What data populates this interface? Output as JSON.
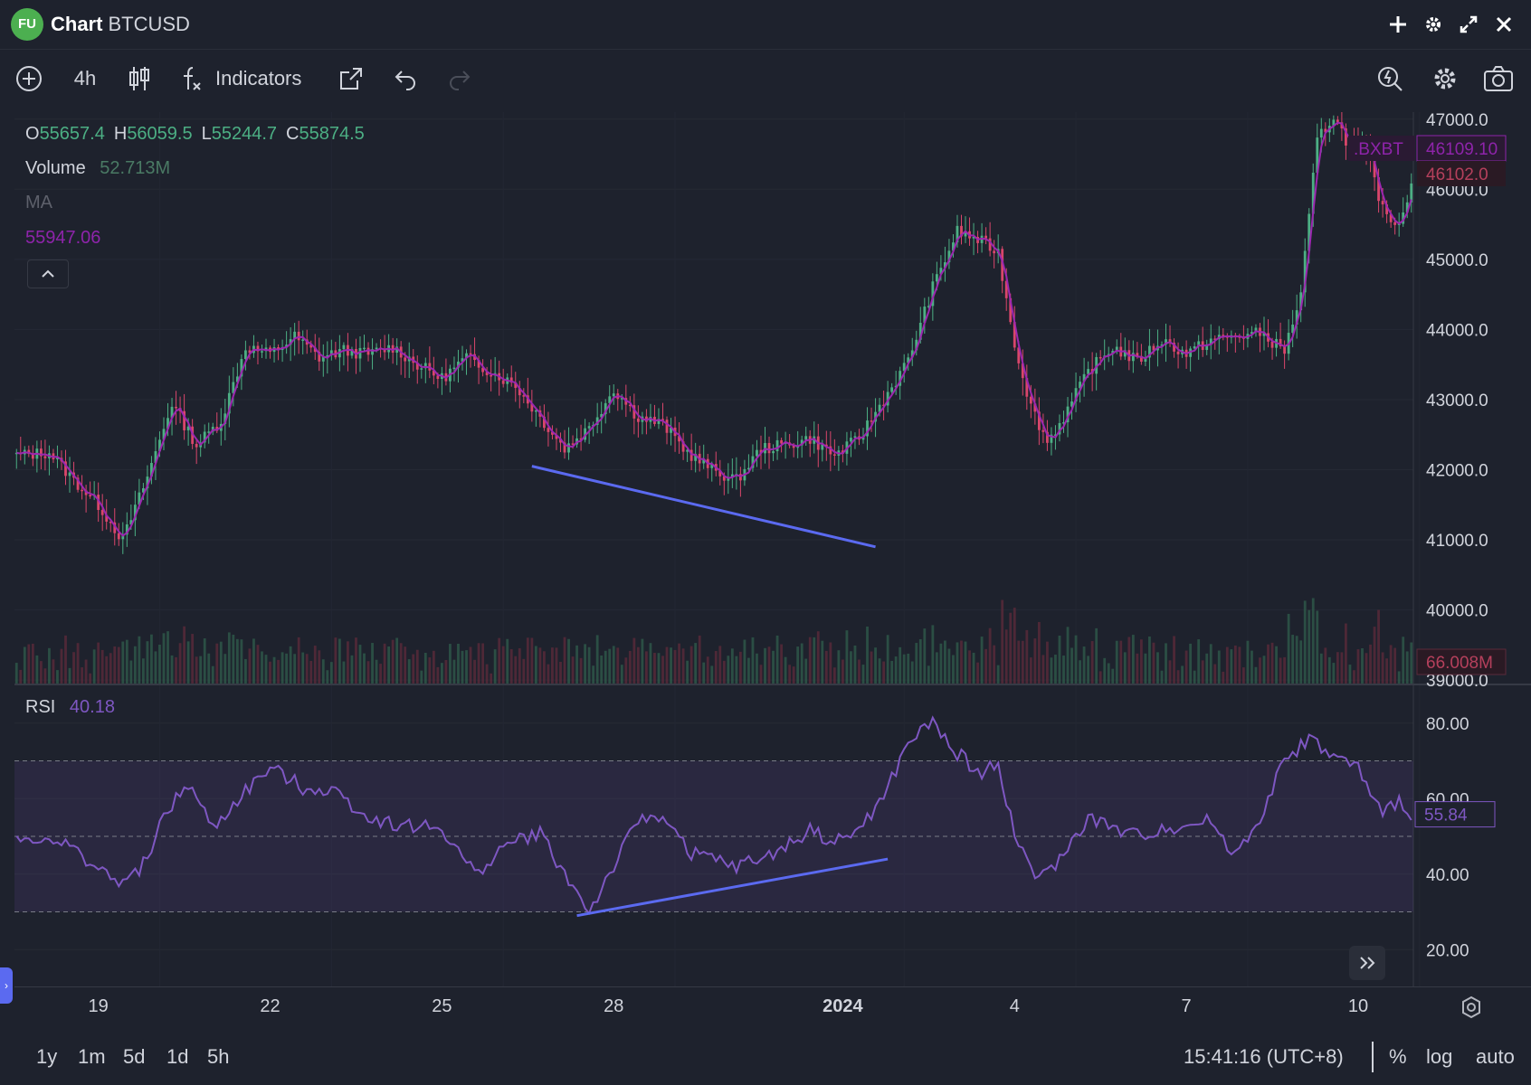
{
  "header": {
    "logo_text": "FU",
    "title_bold": "Chart",
    "title_symbol": "BTCUSD",
    "icons": [
      "plus-icon",
      "gear-icon",
      "expand-icon",
      "close-icon"
    ]
  },
  "toolbar": {
    "interval": "4h",
    "indicators_label": "Indicators"
  },
  "legend": {
    "open_label": "O",
    "open": "55657.4",
    "high_label": "H",
    "high": "56059.5",
    "low_label": "L",
    "low": "55244.7",
    "close_label": "C",
    "close": "55874.5",
    "volume_label": "Volume",
    "volume": "52.713M",
    "ma_label": "MA",
    "ma_value": "55947.06"
  },
  "rsi": {
    "label": "RSI",
    "value": "40.18"
  },
  "price_axis": {
    "ticks": [
      "47000.0",
      "45000.0",
      "44000.0",
      "43000.0",
      "42000.0",
      "41000.0",
      "40000.0",
      "39000.0"
    ],
    "partial_tick": "46000.0",
    "bxbt_label": ".BXBT",
    "bxbt_value": "46109.10",
    "last_price": "46102.0",
    "volume_tag": "66.008M"
  },
  "rsi_axis": {
    "ticks": [
      "80.00",
      "60.00",
      "40.00",
      "20.00"
    ],
    "current": "55.84"
  },
  "time_axis": {
    "labels": [
      "19",
      "22",
      "25",
      "28",
      "2024",
      "4",
      "7",
      "10"
    ]
  },
  "bottom": {
    "ranges": [
      "1y",
      "1m",
      "5d",
      "1d",
      "5h"
    ],
    "clock": "15:41:16 (UTC+8)",
    "percent": "%",
    "log": "log",
    "auto": "auto"
  },
  "colors": {
    "background": "#1e222d",
    "up": "#4caf84",
    "down": "#d9466b",
    "ma_line": "#9c27b0",
    "rsi_line": "#7e57c2",
    "trendline": "#5b6af0"
  },
  "chart_data": {
    "type": "candlestick",
    "symbol": "BTCUSD",
    "interval": "4h",
    "price_range": [
      39000,
      47000
    ],
    "anchors": [
      [
        0,
        42200
      ],
      [
        8,
        42250
      ],
      [
        14,
        41850
      ],
      [
        20,
        41500
      ],
      [
        26,
        41000
      ],
      [
        32,
        41900
      ],
      [
        38,
        42950
      ],
      [
        44,
        42350
      ],
      [
        50,
        42700
      ],
      [
        56,
        43750
      ],
      [
        62,
        43650
      ],
      [
        68,
        43900
      ],
      [
        74,
        43600
      ],
      [
        80,
        43700
      ],
      [
        86,
        43650
      ],
      [
        92,
        43750
      ],
      [
        98,
        43500
      ],
      [
        104,
        43300
      ],
      [
        110,
        43600
      ],
      [
        116,
        43400
      ],
      [
        122,
        43200
      ],
      [
        128,
        42750
      ],
      [
        134,
        42300
      ],
      [
        140,
        42600
      ],
      [
        146,
        43150
      ],
      [
        152,
        42750
      ],
      [
        158,
        42650
      ],
      [
        164,
        42250
      ],
      [
        170,
        42000
      ],
      [
        176,
        41850
      ],
      [
        182,
        42300
      ],
      [
        188,
        42350
      ],
      [
        194,
        42450
      ],
      [
        200,
        42200
      ],
      [
        206,
        42450
      ],
      [
        212,
        43000
      ],
      [
        218,
        43550
      ],
      [
        224,
        44600
      ],
      [
        230,
        45400
      ],
      [
        236,
        45250
      ],
      [
        240,
        45100
      ],
      [
        244,
        43800
      ],
      [
        248,
        42900
      ],
      [
        252,
        42400
      ],
      [
        256,
        42750
      ],
      [
        262,
        43400
      ],
      [
        268,
        43750
      ],
      [
        274,
        43550
      ],
      [
        280,
        43850
      ],
      [
        286,
        43650
      ],
      [
        292,
        43850
      ],
      [
        298,
        43900
      ],
      [
        304,
        43950
      ],
      [
        310,
        43700
      ],
      [
        314,
        44500
      ],
      [
        318,
        46700
      ],
      [
        322,
        47050
      ],
      [
        326,
        46600
      ],
      [
        330,
        46550
      ],
      [
        334,
        45700
      ],
      [
        338,
        45500
      ],
      [
        341,
        46102
      ]
    ],
    "rsi_range": [
      10,
      90
    ],
    "rsi_bands": [
      30,
      50,
      70
    ],
    "rsi_anchors": [
      [
        0,
        49
      ],
      [
        8,
        50
      ],
      [
        16,
        45
      ],
      [
        24,
        38
      ],
      [
        30,
        40
      ],
      [
        36,
        55
      ],
      [
        42,
        64
      ],
      [
        48,
        52
      ],
      [
        56,
        62
      ],
      [
        62,
        68
      ],
      [
        70,
        63
      ],
      [
        78,
        62
      ],
      [
        86,
        55
      ],
      [
        94,
        53
      ],
      [
        104,
        52
      ],
      [
        112,
        40
      ],
      [
        120,
        48
      ],
      [
        128,
        51
      ],
      [
        134,
        40
      ],
      [
        140,
        30
      ],
      [
        146,
        42
      ],
      [
        152,
        54
      ],
      [
        158,
        56
      ],
      [
        164,
        46
      ],
      [
        170,
        44
      ],
      [
        176,
        42
      ],
      [
        182,
        44
      ],
      [
        188,
        47
      ],
      [
        194,
        52
      ],
      [
        200,
        48
      ],
      [
        206,
        52
      ],
      [
        212,
        60
      ],
      [
        218,
        75
      ],
      [
        224,
        80
      ],
      [
        230,
        72
      ],
      [
        236,
        66
      ],
      [
        240,
        70
      ],
      [
        244,
        50
      ],
      [
        250,
        38
      ],
      [
        256,
        45
      ],
      [
        262,
        55
      ],
      [
        268,
        52
      ],
      [
        274,
        50
      ],
      [
        280,
        52
      ],
      [
        286,
        53
      ],
      [
        292,
        54
      ],
      [
        298,
        45
      ],
      [
        304,
        55
      ],
      [
        310,
        70
      ],
      [
        316,
        76
      ],
      [
        322,
        71
      ],
      [
        328,
        68
      ],
      [
        334,
        55
      ],
      [
        338,
        60
      ],
      [
        341,
        55.84
      ]
    ],
    "trendlines": [
      {
        "pane": "price",
        "from": [
          126,
          42050
        ],
        "to": [
          210,
          40900
        ]
      },
      {
        "pane": "rsi",
        "from": [
          137,
          29
        ],
        "to": [
          213,
          44
        ]
      }
    ]
  }
}
